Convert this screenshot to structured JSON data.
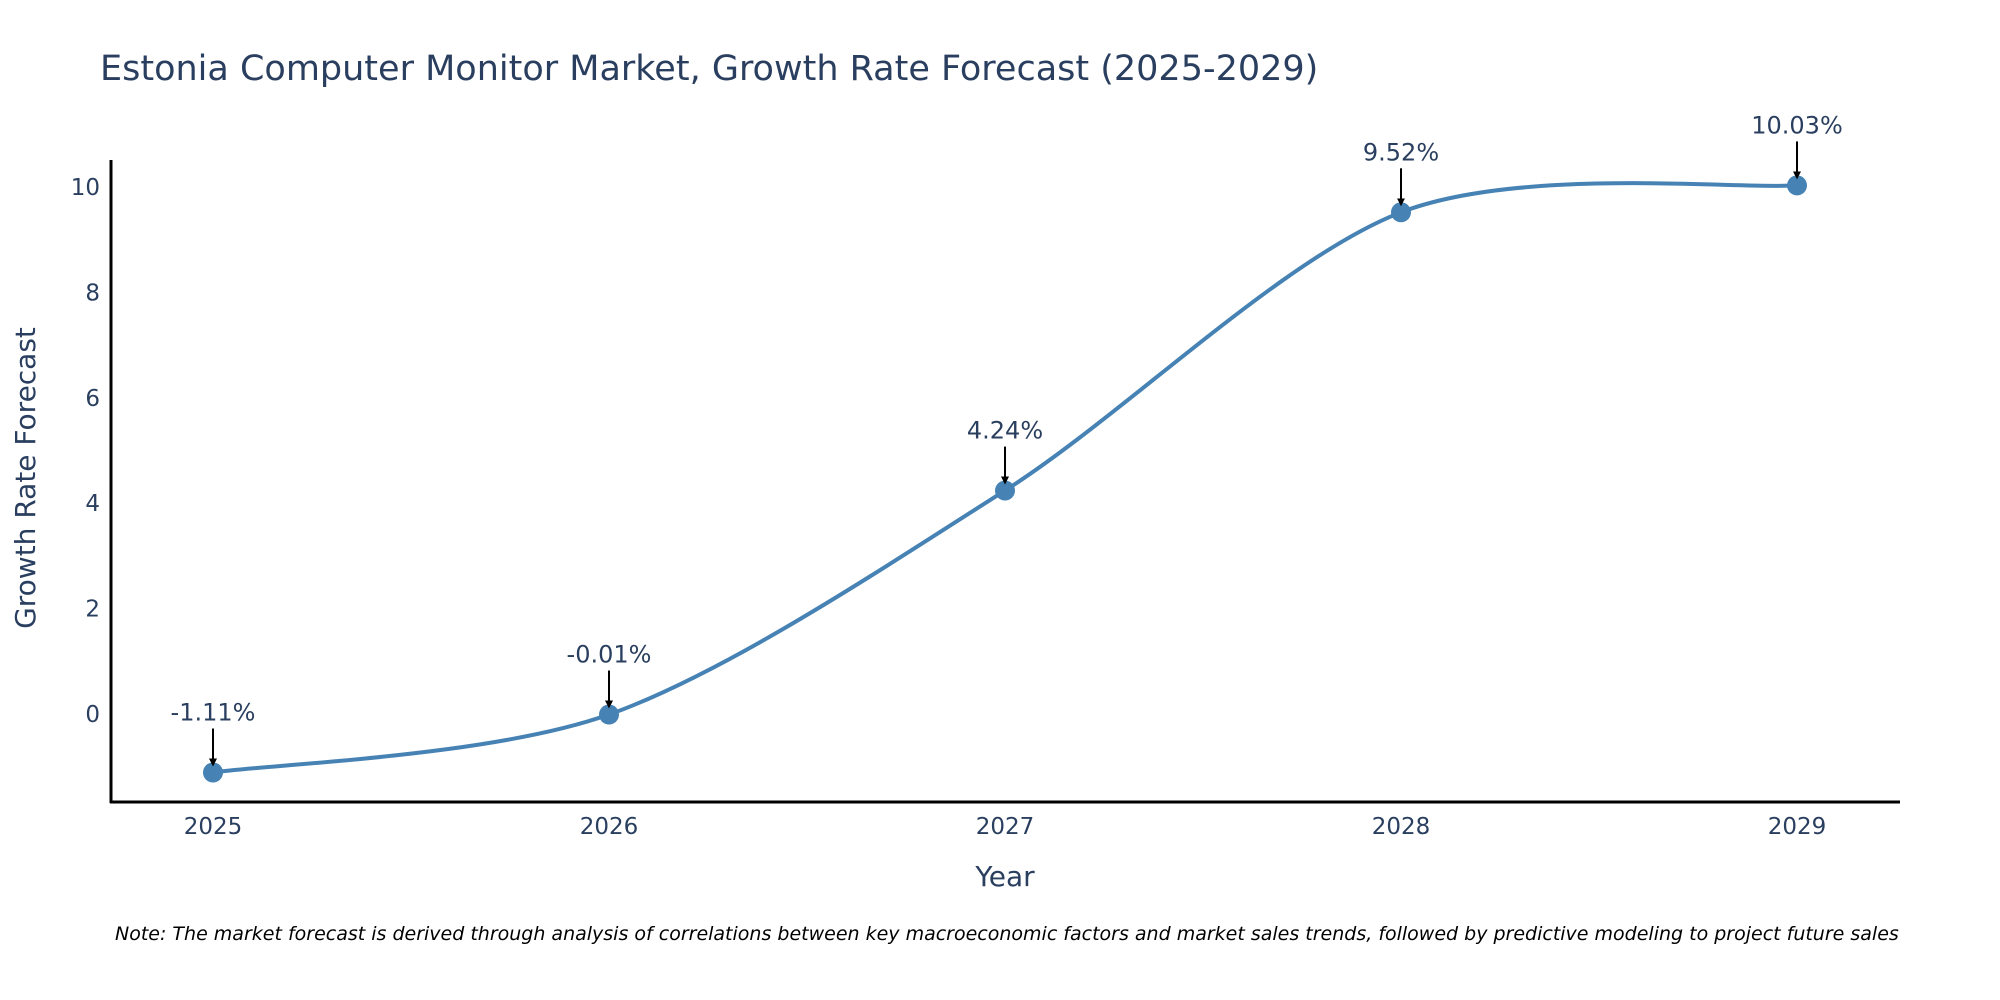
{
  "chart_data": {
    "type": "line",
    "title": "Estonia Computer Monitor Market, Growth Rate Forecast (2025-2029)",
    "xlabel": "Year",
    "ylabel": "Growth Rate Forecast",
    "categories": [
      "2025",
      "2026",
      "2027",
      "2028",
      "2029"
    ],
    "values": [
      -1.11,
      -0.01,
      4.24,
      9.52,
      10.03
    ],
    "data_labels": [
      "-1.11%",
      "-0.01%",
      "4.24%",
      "9.52%",
      "10.03%"
    ],
    "y_ticks": [
      0,
      2,
      4,
      6,
      8,
      10
    ],
    "ylim": [
      -1.65,
      10.5
    ],
    "grid": false,
    "line_color": "#4682b4",
    "marker_color": "#4682b4",
    "note": "Note: The market forecast is derived through analysis of correlations between key macroeconomic factors and market sales trends, followed by predictive modeling to project future sales"
  }
}
